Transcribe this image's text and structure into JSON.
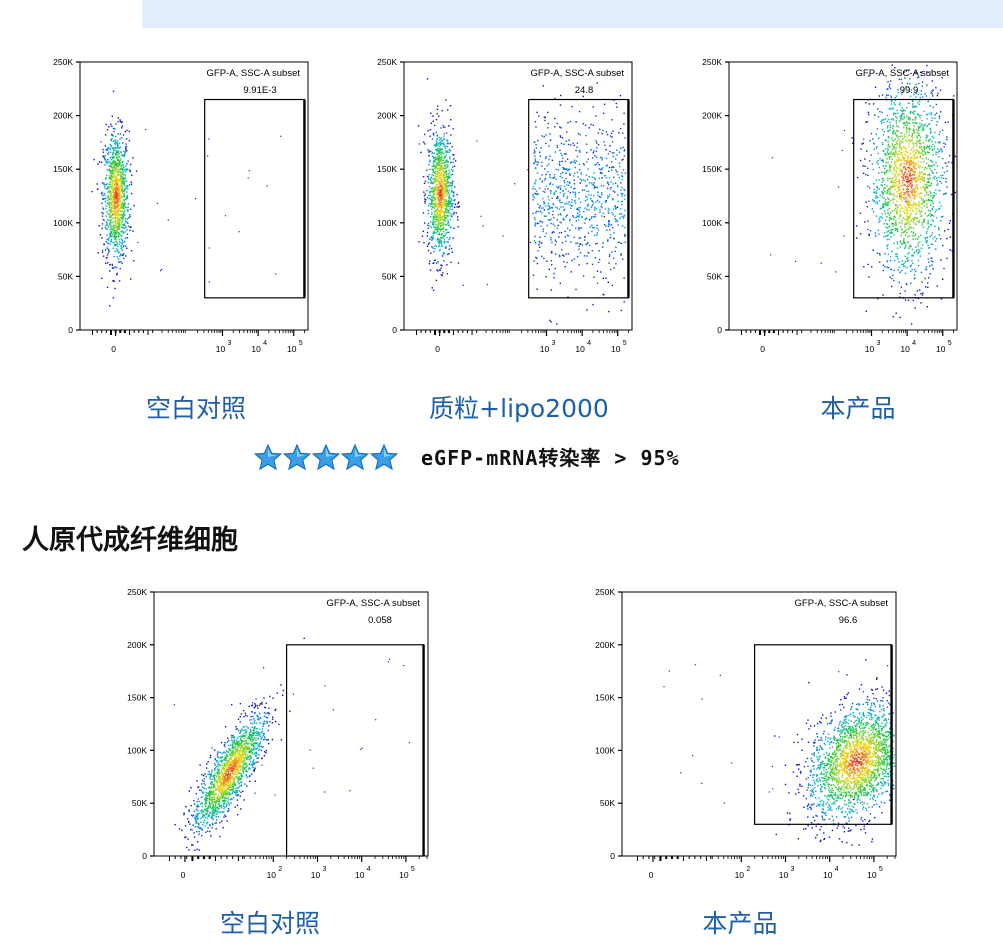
{
  "section_title": "人原代成纤维细胞",
  "rating": {
    "stars": 5,
    "text": "eGFP-mRNA转染率 > 95%"
  },
  "colors": {
    "caption": "#1f5fa8",
    "banner": "#e2eefa",
    "density_low": "#1010c8",
    "density_high": "#e02020"
  },
  "chart_data": [
    {
      "type": "scatter",
      "caption": "空白对照",
      "gate_name": "GFP-A, SSC-A subset",
      "gate_value": "9.91E-3",
      "y_ticks": [
        "250K",
        "200K",
        "150K",
        "100K",
        "50K",
        "0"
      ],
      "x_ticks": [
        "0",
        "10",
        "10",
        "10"
      ],
      "x_tick_exponents": [
        "",
        "3",
        "4",
        "5"
      ],
      "ylim": [
        0,
        250000
      ],
      "gate": {
        "x_from_log": 2.5,
        "x_to_log": 5.3,
        "y_from": 30000,
        "y_to": 215000
      },
      "populations": [
        {
          "center_log": 0.0,
          "center_y": 125000,
          "n": 1100
        }
      ]
    },
    {
      "type": "scatter",
      "caption": "质粒+lipo2000",
      "gate_name": "GFP-A, SSC-A subset",
      "gate_value": "24.8",
      "y_ticks": [
        "250K",
        "200K",
        "150K",
        "100K",
        "50K",
        "0"
      ],
      "x_ticks": [
        "0",
        "10",
        "10",
        "10"
      ],
      "x_tick_exponents": [
        "",
        "3",
        "4",
        "5"
      ],
      "ylim": [
        0,
        250000
      ],
      "gate": {
        "x_from_log": 2.5,
        "x_to_log": 5.3,
        "y_from": 30000,
        "y_to": 215000
      },
      "populations": [
        {
          "center_log": 0.0,
          "center_y": 128000,
          "n": 1050
        },
        {
          "center_log": 4.0,
          "center_y": 125000,
          "n": 800
        }
      ]
    },
    {
      "type": "scatter",
      "caption": "本产品",
      "gate_name": "GFP-A, SSC-A subset",
      "gate_value": "99.9",
      "y_ticks": [
        "250K",
        "200K",
        "150K",
        "100K",
        "50K",
        "0"
      ],
      "x_ticks": [
        "0",
        "10",
        "10",
        "10"
      ],
      "x_tick_exponents": [
        "",
        "3",
        "4",
        "5"
      ],
      "ylim": [
        0,
        250000
      ],
      "gate": {
        "x_from_log": 2.5,
        "x_to_log": 5.3,
        "y_from": 30000,
        "y_to": 215000
      },
      "populations": [
        {
          "center_log": 4.0,
          "center_y": 140000,
          "n": 1700
        }
      ]
    },
    {
      "type": "scatter",
      "caption": "空白对照",
      "gate_name": "GFP-A, SSC-A subset",
      "gate_value": "0.058",
      "y_ticks": [
        "250K",
        "200K",
        "150K",
        "100K",
        "50K",
        "0"
      ],
      "x_ticks": [
        "0",
        "10",
        "10",
        "10",
        "10"
      ],
      "x_tick_exponents": [
        "",
        "2",
        "3",
        "4",
        "5"
      ],
      "ylim": [
        0,
        250000
      ],
      "gate": {
        "x_from_log": 2.3,
        "x_to_log": 5.4,
        "y_from": 0,
        "y_to": 200000
      },
      "populations": [
        {
          "center_log": 1.0,
          "center_y": 80000,
          "n": 1600
        }
      ]
    },
    {
      "type": "scatter",
      "caption": "本产品",
      "gate_name": "GFP-A, SSC-A subset",
      "gate_value": "96.6",
      "y_ticks": [
        "250K",
        "200K",
        "150K",
        "100K",
        "50K",
        "0"
      ],
      "x_ticks": [
        "0",
        "10",
        "10",
        "10",
        "10"
      ],
      "x_tick_exponents": [
        "",
        "2",
        "3",
        "4",
        "5"
      ],
      "ylim": [
        0,
        250000
      ],
      "gate": {
        "x_from_log": 2.3,
        "x_to_log": 5.4,
        "y_from": 30000,
        "y_to": 200000
      },
      "populations": [
        {
          "center_log": 4.6,
          "center_y": 90000,
          "n": 2200
        }
      ]
    }
  ]
}
